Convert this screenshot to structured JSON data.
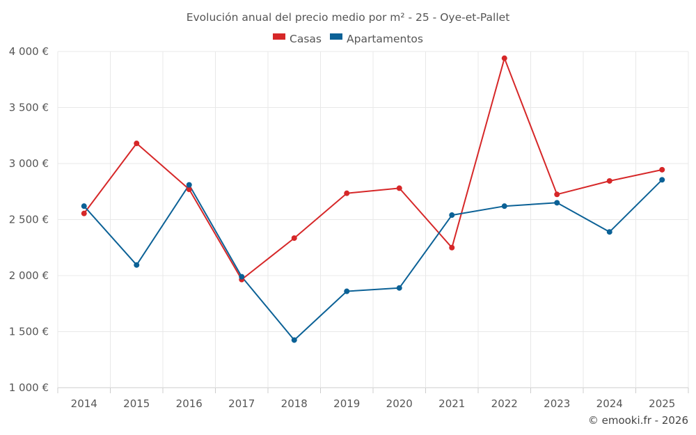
{
  "chart_data": {
    "type": "line",
    "title": "Evolución anual del precio medio por m² - 25 - Oye-et-Pallet",
    "categories": [
      "2014",
      "2015",
      "2016",
      "2017",
      "2018",
      "2019",
      "2020",
      "2021",
      "2022",
      "2023",
      "2024",
      "2025"
    ],
    "series": [
      {
        "name": "Casas",
        "color": "#d62728",
        "values": [
          2555,
          3180,
          2770,
          1965,
          2335,
          2735,
          2780,
          2250,
          3940,
          2725,
          2845,
          2945
        ]
      },
      {
        "name": "Apartamentos",
        "color": "#0b6196",
        "values": [
          2620,
          2095,
          2810,
          1990,
          1425,
          1860,
          1890,
          2540,
          2620,
          2650,
          2390,
          2855
        ]
      }
    ],
    "ylim": [
      1000,
      4000
    ],
    "yticks": [
      {
        "value": 1000,
        "label": "1 000 €"
      },
      {
        "value": 1500,
        "label": "1 500 €"
      },
      {
        "value": 2000,
        "label": "2 000 €"
      },
      {
        "value": 2500,
        "label": "2 500 €"
      },
      {
        "value": 3000,
        "label": "3 000 €"
      },
      {
        "value": 3500,
        "label": "3 500 €"
      },
      {
        "value": 4000,
        "label": "4 000 €"
      }
    ],
    "grid": true,
    "legend": "top-center",
    "credit": "© emooki.fr - 2026"
  }
}
